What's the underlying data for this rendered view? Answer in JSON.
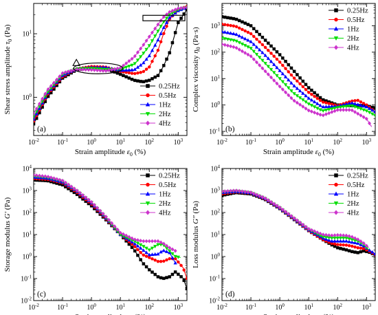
{
  "chart_data": [
    {
      "id": "a",
      "tag": "(a)",
      "type": "line",
      "x_scale": "log",
      "y_scale": "log",
      "xlim": [
        0.01,
        2000
      ],
      "ylim": [
        0.25,
        30
      ],
      "xlabel": {
        "pre": "Strain amplitude ",
        "sym": "ε",
        "sub": "0",
        "post": " (%)"
      },
      "ylabel": {
        "pre": "Shear stress amplitude ",
        "sym": "τ",
        "sub": "0",
        "post": " (Pa)"
      },
      "x_ticks": [
        {
          "v": 0.01,
          "b": "10",
          "e": "-2"
        },
        {
          "v": 0.1,
          "b": "10",
          "e": "-1"
        },
        {
          "v": 1,
          "b": "10",
          "e": "0"
        },
        {
          "v": 10,
          "b": "10",
          "e": "1"
        },
        {
          "v": 100,
          "b": "10",
          "e": "2"
        },
        {
          "v": 1000,
          "b": "10",
          "e": "3"
        }
      ],
      "y_ticks": [
        {
          "v": 1,
          "b": "10",
          "e": "0"
        },
        {
          "v": 10,
          "b": "10",
          "e": "1"
        }
      ],
      "legend": {
        "position": "lower-right",
        "entries": [
          "0.25Hz",
          "0.5Hz",
          "1Hz",
          "2Hz",
          "4Hz"
        ]
      },
      "annotations": [
        {
          "shape": "triangle",
          "x": 0.3,
          "y": 3.4
        },
        {
          "shape": "ellipse",
          "x": 1.7,
          "y": 2.85,
          "rx_decades": 0.85,
          "ry_decades": 0.085
        },
        {
          "shape": "rectangle",
          "x0": 60,
          "x1": 1700,
          "y0": 16,
          "y1": 19.5
        }
      ],
      "series": [
        {
          "name": "0.25Hz",
          "x": [
            0.01,
            0.03,
            0.1,
            0.3,
            1,
            3,
            10,
            30,
            60,
            100,
            200,
            300,
            500,
            1000,
            2000
          ],
          "y": [
            0.38,
            1.0,
            2.0,
            2.7,
            2.95,
            2.85,
            2.3,
            1.85,
            1.75,
            1.85,
            2.2,
            3.0,
            5.0,
            15,
            24
          ]
        },
        {
          "name": "0.5Hz",
          "x": [
            0.01,
            0.03,
            0.1,
            0.3,
            1,
            3,
            10,
            30,
            60,
            100,
            200,
            300,
            500,
            1000,
            2000
          ],
          "y": [
            0.42,
            1.1,
            2.1,
            2.8,
            3.05,
            3.0,
            2.55,
            2.35,
            2.5,
            3.0,
            5.5,
            9.5,
            17,
            24,
            27
          ]
        },
        {
          "name": "1Hz",
          "x": [
            0.01,
            0.03,
            0.1,
            0.3,
            1,
            3,
            10,
            30,
            60,
            100,
            200,
            300,
            500,
            1000,
            2000
          ],
          "y": [
            0.45,
            1.15,
            2.2,
            2.8,
            2.95,
            2.95,
            2.65,
            2.7,
            3.4,
            4.5,
            8.0,
            12,
            18,
            23,
            26
          ]
        },
        {
          "name": "2Hz",
          "x": [
            0.01,
            0.03,
            0.1,
            0.3,
            1,
            3,
            10,
            30,
            60,
            100,
            200,
            300,
            500,
            1000,
            2000
          ],
          "y": [
            0.5,
            1.2,
            2.3,
            2.8,
            2.85,
            2.75,
            2.75,
            3.3,
            4.8,
            6.5,
            11,
            15,
            20,
            24,
            26
          ]
        },
        {
          "name": "4Hz",
          "x": [
            0.01,
            0.03,
            0.1,
            0.3,
            1,
            3,
            10,
            30,
            60,
            100,
            200,
            300,
            500,
            1000,
            2000
          ],
          "y": [
            0.55,
            1.3,
            2.4,
            2.75,
            2.7,
            2.6,
            2.9,
            4.3,
            6.5,
            9.0,
            14,
            18,
            22,
            25,
            26
          ]
        }
      ]
    },
    {
      "id": "b",
      "tag": "(b)",
      "type": "line",
      "x_scale": "log",
      "y_scale": "log",
      "xlim": [
        0.01,
        2000
      ],
      "ylim": [
        0.07,
        7000
      ],
      "xlabel": {
        "pre": "Strain amplitude ",
        "sym": "ε",
        "sub": "0",
        "post": " (%)"
      },
      "ylabel": {
        "pre": "Complex viscosity ",
        "sym": "η",
        "sub": "0",
        "post": " (Pa·s)"
      },
      "x_ticks": [
        {
          "v": 0.01,
          "b": "10",
          "e": "-2"
        },
        {
          "v": 0.1,
          "b": "10",
          "e": "-1"
        },
        {
          "v": 1,
          "b": "10",
          "e": "0"
        },
        {
          "v": 10,
          "b": "10",
          "e": "1"
        },
        {
          "v": 100,
          "b": "10",
          "e": "2"
        },
        {
          "v": 1000,
          "b": "10",
          "e": "3"
        }
      ],
      "y_ticks": [
        {
          "v": 0.1,
          "b": "10",
          "e": "-1"
        },
        {
          "v": 1,
          "b": "10",
          "e": "0"
        },
        {
          "v": 10,
          "b": "10",
          "e": "1"
        },
        {
          "v": 100,
          "b": "10",
          "e": "2"
        },
        {
          "v": 1000,
          "b": "10",
          "e": "3"
        }
      ],
      "legend": {
        "position": "top-right",
        "entries": [
          "0.25Hz",
          "0.5Hz",
          "1Hz",
          "2Hz",
          "4Hz"
        ]
      },
      "series": [
        {
          "name": "0.25Hz",
          "x": [
            0.01,
            0.03,
            0.1,
            0.3,
            1,
            3,
            10,
            30,
            100,
            300,
            1000,
            2000
          ],
          "y": [
            2200,
            1800,
            1000,
            300,
            80,
            20,
            4.5,
            1.6,
            1.0,
            0.95,
            0.95,
            0.75
          ]
        },
        {
          "name": "0.5Hz",
          "x": [
            0.01,
            0.03,
            0.1,
            0.3,
            1,
            3,
            10,
            30,
            100,
            300,
            500,
            1000,
            2000
          ],
          "y": [
            1150,
            950,
            500,
            160,
            42,
            11,
            3.0,
            1.3,
            0.95,
            1.4,
            1.5,
            1.0,
            0.55
          ]
        },
        {
          "name": "1Hz",
          "x": [
            0.01,
            0.03,
            0.1,
            0.3,
            1,
            3,
            10,
            30,
            100,
            300,
            1000,
            2000
          ],
          "y": [
            600,
            480,
            250,
            80,
            20,
            5.5,
            1.8,
            0.85,
            0.9,
            1.2,
            0.85,
            0.55
          ]
        },
        {
          "name": "2Hz",
          "x": [
            0.01,
            0.03,
            0.1,
            0.3,
            1,
            3,
            10,
            30,
            100,
            300,
            1000,
            2000
          ],
          "y": [
            340,
            270,
            140,
            40,
            10,
            2.8,
            1.1,
            0.6,
            0.8,
            0.95,
            0.6,
            0.4
          ]
        },
        {
          "name": "4Hz",
          "x": [
            0.01,
            0.03,
            0.1,
            0.3,
            1,
            3,
            10,
            30,
            100,
            300,
            1000,
            1500
          ],
          "y": [
            200,
            150,
            70,
            20,
            5.0,
            1.5,
            0.62,
            0.4,
            0.65,
            0.65,
            0.3,
            0.15
          ]
        }
      ]
    },
    {
      "id": "c",
      "tag": "(c)",
      "type": "line",
      "x_scale": "log",
      "y_scale": "log",
      "xlim": [
        0.01,
        2000
      ],
      "ylim": [
        0.01,
        10000
      ],
      "xlabel": {
        "pre": "Strain amplitude ",
        "sym": "ε",
        "sub": "0",
        "post": " (%)"
      },
      "ylabel": {
        "pre": "Storage modulus ",
        "sym": "G′",
        "sub": "",
        "post": " (Pa)"
      },
      "x_ticks": [
        {
          "v": 0.01,
          "b": "10",
          "e": "-2"
        },
        {
          "v": 0.1,
          "b": "10",
          "e": "-1"
        },
        {
          "v": 1,
          "b": "10",
          "e": "0"
        },
        {
          "v": 10,
          "b": "10",
          "e": "1"
        },
        {
          "v": 100,
          "b": "10",
          "e": "2"
        },
        {
          "v": 1000,
          "b": "10",
          "e": "3"
        }
      ],
      "y_ticks": [
        {
          "v": 0.01,
          "b": "10",
          "e": "-2"
        },
        {
          "v": 0.1,
          "b": "10",
          "e": "-1"
        },
        {
          "v": 1,
          "b": "10",
          "e": "0"
        },
        {
          "v": 10,
          "b": "10",
          "e": "1"
        },
        {
          "v": 100,
          "b": "10",
          "e": "2"
        },
        {
          "v": 1000,
          "b": "10",
          "e": "3"
        },
        {
          "v": 10000,
          "b": "10",
          "e": "4"
        }
      ],
      "legend": {
        "position": "top-right",
        "entries": [
          "0.25Hz",
          "0.5Hz",
          "1Hz",
          "2Hz",
          "4Hz"
        ]
      },
      "series": [
        {
          "name": "0.25Hz",
          "x": [
            0.01,
            0.03,
            0.1,
            0.3,
            1,
            3,
            10,
            30,
            60,
            100,
            200,
            300,
            500,
            800,
            1500,
            2000
          ],
          "y": [
            3000,
            2800,
            1800,
            700,
            200,
            50,
            10,
            2.0,
            0.5,
            0.25,
            0.12,
            0.1,
            0.12,
            0.2,
            0.1,
            0.035
          ]
        },
        {
          "name": "0.5Hz",
          "x": [
            0.01,
            0.03,
            0.1,
            0.3,
            1,
            3,
            10,
            30,
            60,
            100,
            200,
            300,
            500,
            800,
            1500,
            2000
          ],
          "y": [
            3500,
            3200,
            2200,
            850,
            240,
            55,
            10,
            3.0,
            1.2,
            0.9,
            0.6,
            0.6,
            0.8,
            0.8,
            0.3,
            0.1
          ]
        },
        {
          "name": "1Hz",
          "x": [
            0.01,
            0.03,
            0.1,
            0.3,
            1,
            3,
            10,
            30,
            60,
            100,
            200,
            300,
            500,
            800
          ],
          "y": [
            4000,
            3600,
            2400,
            950,
            270,
            60,
            10,
            4.0,
            2.0,
            1.2,
            1.3,
            1.9,
            1.5,
            0.5
          ]
        },
        {
          "name": "2Hz",
          "x": [
            0.01,
            0.03,
            0.1,
            0.3,
            1,
            3,
            10,
            30,
            60,
            100,
            200,
            300,
            500,
            800,
            1200
          ],
          "y": [
            4500,
            3900,
            2600,
            1000,
            290,
            65,
            10,
            5.0,
            3.0,
            2.0,
            3.5,
            3.5,
            1.8,
            1.0,
            0.9
          ]
        },
        {
          "name": "4Hz",
          "x": [
            0.01,
            0.03,
            0.1,
            0.3,
            1,
            3,
            10,
            30,
            60,
            100,
            200,
            300,
            500,
            800
          ],
          "y": [
            5000,
            4300,
            2800,
            1050,
            300,
            70,
            12,
            6.0,
            5.0,
            5.0,
            5.0,
            4.0,
            2.5,
            1.8
          ]
        }
      ]
    },
    {
      "id": "d",
      "tag": "(d)",
      "type": "line",
      "x_scale": "log",
      "y_scale": "log",
      "xlim": [
        0.01,
        2000
      ],
      "ylim": [
        0.01,
        10000
      ],
      "xlabel": {
        "pre": "Strain amplitude ",
        "sym": "ε",
        "sub": "0",
        "post": " (%)"
      },
      "ylabel": {
        "pre": "Loss modulus ",
        "sym": "G″",
        "sub": "",
        "post": " (Pa)"
      },
      "x_ticks": [
        {
          "v": 0.01,
          "b": "10",
          "e": "-2"
        },
        {
          "v": 0.1,
          "b": "10",
          "e": "-1"
        },
        {
          "v": 1,
          "b": "10",
          "e": "0"
        },
        {
          "v": 10,
          "b": "10",
          "e": "1"
        },
        {
          "v": 100,
          "b": "10",
          "e": "2"
        },
        {
          "v": 1000,
          "b": "10",
          "e": "3"
        }
      ],
      "y_ticks": [
        {
          "v": 0.01,
          "b": "10",
          "e": "-2"
        },
        {
          "v": 0.1,
          "b": "10",
          "e": "-1"
        },
        {
          "v": 1,
          "b": "10",
          "e": "0"
        },
        {
          "v": 10,
          "b": "10",
          "e": "1"
        },
        {
          "v": 100,
          "b": "10",
          "e": "2"
        },
        {
          "v": 1000,
          "b": "10",
          "e": "3"
        },
        {
          "v": 10000,
          "b": "10",
          "e": "4"
        }
      ],
      "legend": {
        "position": "top-right",
        "entries": [
          "0.25Hz",
          "0.5Hz",
          "1Hz",
          "2Hz",
          "4Hz"
        ]
      },
      "series": [
        {
          "name": "0.25Hz",
          "x": [
            0.01,
            0.03,
            0.1,
            0.3,
            1,
            3,
            10,
            30,
            60,
            100,
            200,
            300,
            500,
            800,
            1200,
            2000
          ],
          "y": [
            600,
            800,
            700,
            400,
            150,
            50,
            15,
            6.0,
            3.5,
            2.5,
            2.0,
            1.7,
            1.5,
            1.8,
            1.6,
            1.2
          ]
        },
        {
          "name": "0.5Hz",
          "x": [
            0.01,
            0.03,
            0.1,
            0.3,
            1,
            3,
            10,
            30,
            60,
            100,
            200,
            300,
            500,
            800,
            1200,
            2000
          ],
          "y": [
            700,
            850,
            750,
            420,
            155,
            52,
            15,
            6.0,
            4.0,
            3.5,
            3.3,
            3.0,
            2.5,
            2.3,
            1.8,
            1.2
          ]
        },
        {
          "name": "1Hz",
          "x": [
            0.01,
            0.03,
            0.1,
            0.3,
            1,
            3,
            10,
            30,
            60,
            100,
            200,
            300,
            500,
            800,
            1200,
            2000
          ],
          "y": [
            800,
            900,
            780,
            440,
            160,
            54,
            16,
            7.0,
            5.0,
            5.0,
            5.0,
            4.5,
            4.0,
            3.0,
            2.0,
            1.3
          ]
        },
        {
          "name": "2Hz",
          "x": [
            0.01,
            0.03,
            0.1,
            0.3,
            1,
            3,
            10,
            30,
            60,
            100,
            200,
            300,
            500,
            800,
            1200
          ],
          "y": [
            850,
            950,
            800,
            450,
            165,
            56,
            17,
            8.0,
            7.0,
            7.0,
            7.0,
            6.0,
            5.0,
            3.5,
            2.0
          ]
        },
        {
          "name": "4Hz",
          "x": [
            0.01,
            0.03,
            0.1,
            0.3,
            1,
            3,
            10,
            30,
            60,
            100,
            200,
            300,
            500,
            800,
            1200
          ],
          "y": [
            900,
            1000,
            820,
            460,
            170,
            58,
            18,
            10,
            9.0,
            9.5,
            9.0,
            8.0,
            6.0,
            4.0,
            2.5
          ]
        }
      ]
    }
  ],
  "style": {
    "series_colors": {
      "0.25Hz": "#000000",
      "0.5Hz": "#ff0000",
      "1Hz": "#0000ff",
      "2Hz": "#00dd00",
      "4Hz": "#cc33cc"
    },
    "series_markers": {
      "0.25Hz": "square",
      "0.5Hz": "circle",
      "1Hz": "triangle-up",
      "2Hz": "triangle-down",
      "4Hz": "diamond"
    }
  }
}
